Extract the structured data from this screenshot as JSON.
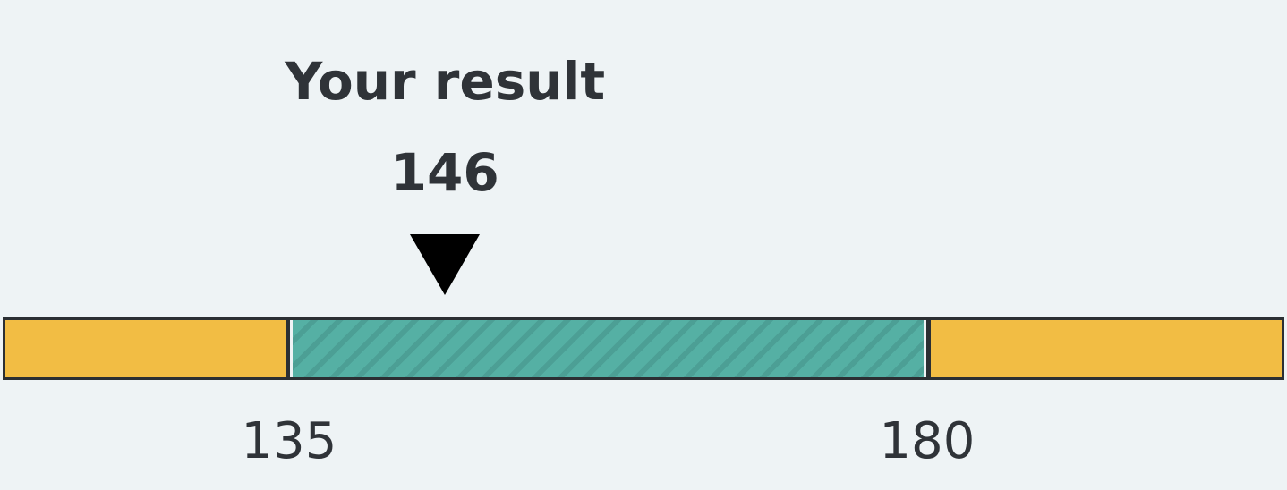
{
  "result": {
    "title": "Your result",
    "value": 146
  },
  "scale": {
    "min": 115,
    "max": 205,
    "normal_low": 135,
    "normal_high": 180
  },
  "labels": {
    "low": "135",
    "high": "180"
  },
  "colors": {
    "out_of_range": "#f2bd44",
    "in_range": "#55b0a4",
    "in_range_stripe": "#4c9f95",
    "outline": "#2b2f33",
    "pointer": "#000000",
    "text": "#2f3338",
    "background": "#eef3f5"
  }
}
